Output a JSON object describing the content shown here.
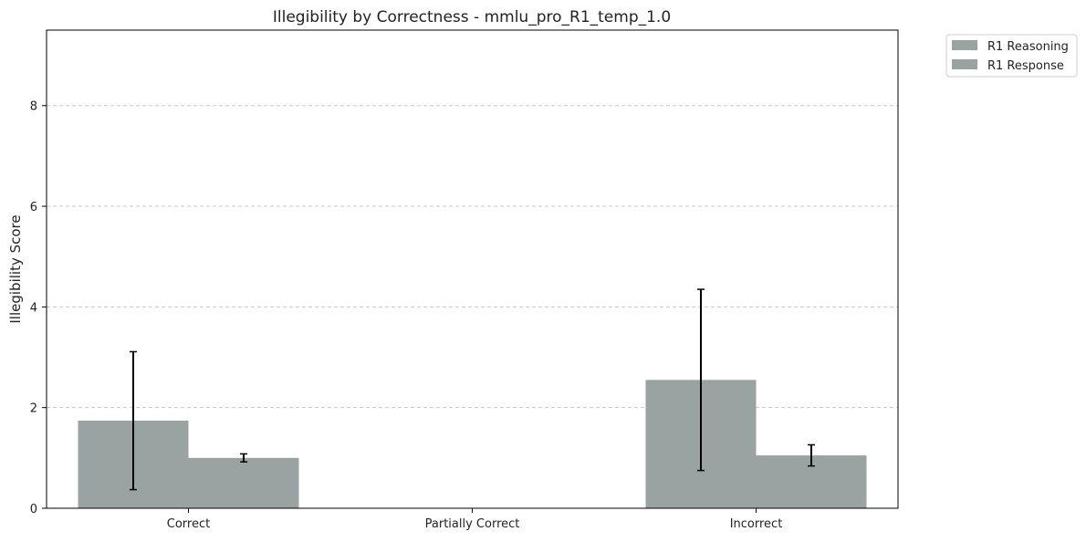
{
  "chart_data": {
    "type": "bar",
    "title": "Illegibility by Correctness - mmlu_pro_R1_temp_1.0",
    "xlabel": "",
    "ylabel": "Illegibility Score",
    "categories": [
      "Correct",
      "Partially Correct",
      "Incorrect"
    ],
    "series": [
      {
        "name": "R1 Reasoning",
        "values": [
          1.74,
          0,
          2.55
        ],
        "errors": [
          1.37,
          0,
          1.8
        ]
      },
      {
        "name": "R1 Response",
        "values": [
          1.0,
          0,
          1.05
        ],
        "errors": [
          0.08,
          0,
          0.21
        ]
      }
    ],
    "ylim": [
      0,
      9.5
    ],
    "yticks": [
      0,
      2,
      4,
      6,
      8
    ],
    "grid": "y-dashed",
    "legend_position": "outside-top-right",
    "colors": {
      "bar": "#98a3a2",
      "error_bar": "#000000",
      "grid": "#c8c8c8"
    }
  }
}
